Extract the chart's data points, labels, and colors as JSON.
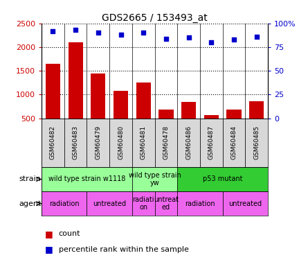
{
  "title": "GDS2665 / 153493_at",
  "samples": [
    "GSM60482",
    "GSM60483",
    "GSM60479",
    "GSM60480",
    "GSM60481",
    "GSM60478",
    "GSM60486",
    "GSM60487",
    "GSM60484",
    "GSM60485"
  ],
  "counts": [
    1650,
    2100,
    1450,
    1080,
    1250,
    680,
    850,
    560,
    680,
    860
  ],
  "percentiles": [
    92,
    93,
    90,
    88,
    90,
    84,
    85,
    80,
    83,
    86
  ],
  "bar_color": "#cc0000",
  "dot_color": "#0000cc",
  "ylim_left": [
    500,
    2500
  ],
  "ylim_right": [
    0,
    100
  ],
  "yticks_left": [
    500,
    1000,
    1500,
    2000,
    2500
  ],
  "yticks_right": [
    0,
    25,
    50,
    75,
    100
  ],
  "strain_groups": [
    {
      "label": "wild type strain w1118",
      "start": 0,
      "end": 3,
      "color": "#99ff99"
    },
    {
      "label": "wild type strain\nyw",
      "start": 4,
      "end": 5,
      "color": "#99ff99"
    },
    {
      "label": "p53 mutant",
      "start": 6,
      "end": 9,
      "color": "#33cc33"
    }
  ],
  "agent_groups": [
    {
      "label": "radiation",
      "start": 0,
      "end": 1,
      "color": "#ee66ee"
    },
    {
      "label": "untreated",
      "start": 2,
      "end": 3,
      "color": "#ee66ee"
    },
    {
      "label": "radiati\non",
      "start": 4,
      "end": 4,
      "color": "#ee66ee"
    },
    {
      "label": "untreat\ned",
      "start": 5,
      "end": 5,
      "color": "#ee66ee"
    },
    {
      "label": "radiation",
      "start": 6,
      "end": 7,
      "color": "#ee66ee"
    },
    {
      "label": "untreated",
      "start": 8,
      "end": 9,
      "color": "#ee66ee"
    }
  ],
  "sample_bg": "#d8d8d8",
  "legend_count_label": "count",
  "legend_pct_label": "percentile rank within the sample"
}
